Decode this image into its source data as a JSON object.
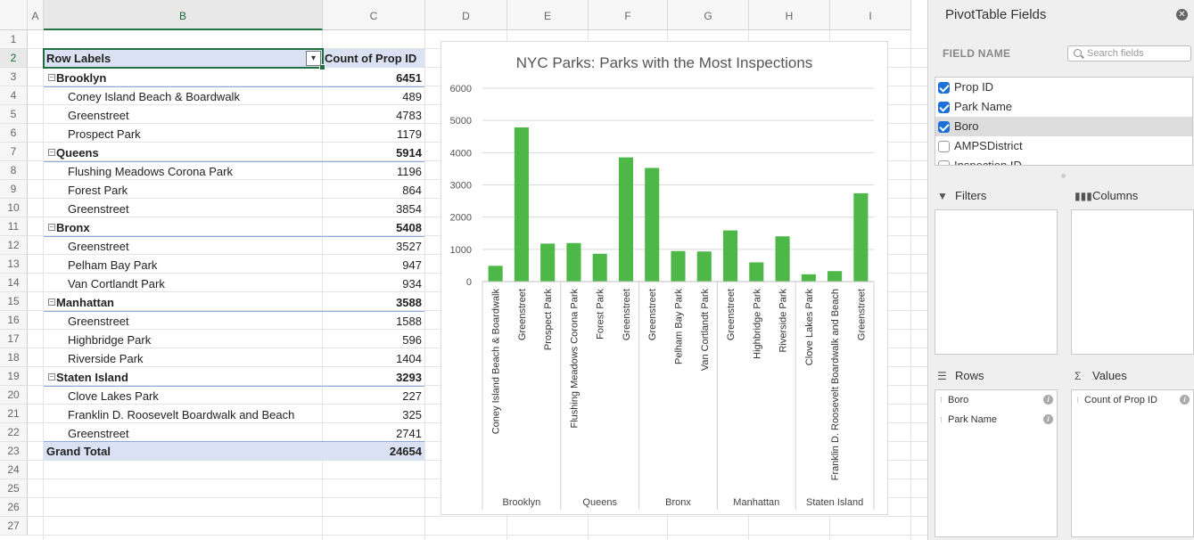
{
  "sheet": {
    "columns": [
      "A",
      "B",
      "C",
      "D",
      "E",
      "F",
      "G",
      "H",
      "I"
    ],
    "rows": [
      "1",
      "2",
      "3",
      "4",
      "5",
      "6",
      "7",
      "8",
      "9",
      "10",
      "11",
      "12",
      "13",
      "14",
      "15",
      "16",
      "17",
      "18",
      "19",
      "20",
      "21",
      "22",
      "23",
      "24",
      "25",
      "26",
      "27"
    ],
    "selected_column": "B",
    "selected_row": "2"
  },
  "pivot": {
    "header_label": "Row Labels",
    "header_value": "Count of Prop ID",
    "filter_icon": "filter-dropdown-icon",
    "toggle_icon": "collapse-minus-icon",
    "groups": [
      {
        "name": "Brooklyn",
        "total": "6451",
        "items": [
          {
            "name": "Coney Island Beach & Boardwalk",
            "value": "489"
          },
          {
            "name": "Greenstreet",
            "value": "4783"
          },
          {
            "name": "Prospect Park",
            "value": "1179"
          }
        ]
      },
      {
        "name": "Queens",
        "total": "5914",
        "items": [
          {
            "name": "Flushing Meadows Corona Park",
            "value": "1196"
          },
          {
            "name": "Forest Park",
            "value": "864"
          },
          {
            "name": "Greenstreet",
            "value": "3854"
          }
        ]
      },
      {
        "name": "Bronx",
        "total": "5408",
        "items": [
          {
            "name": "Greenstreet",
            "value": "3527"
          },
          {
            "name": "Pelham Bay Park",
            "value": "947"
          },
          {
            "name": "Van Cortlandt Park",
            "value": "934"
          }
        ]
      },
      {
        "name": "Manhattan",
        "total": "3588",
        "items": [
          {
            "name": "Greenstreet",
            "value": "1588"
          },
          {
            "name": "Highbridge Park",
            "value": "596"
          },
          {
            "name": "Riverside Park",
            "value": "1404"
          }
        ]
      },
      {
        "name": "Staten Island",
        "total": "3293",
        "items": [
          {
            "name": "Clove Lakes Park",
            "value": "227"
          },
          {
            "name": "Franklin D. Roosevelt Boardwalk and Beach",
            "value": "325"
          },
          {
            "name": "Greenstreet",
            "value": "2741"
          }
        ]
      }
    ],
    "grand_total_label": "Grand Total",
    "grand_total_value": "24654"
  },
  "chart_data": {
    "type": "bar",
    "title": "NYC Parks: Parks with the Most Inspections",
    "xlabel": "",
    "ylabel": "",
    "ylim": [
      0,
      6000
    ],
    "yticks": [
      0,
      1000,
      2000,
      3000,
      4000,
      5000,
      6000
    ],
    "bar_color": "#4db748",
    "categories": [
      "Coney Island Beach & Boardwalk",
      "Greenstreet",
      "Prospect Park",
      "Flushing Meadows Corona Park",
      "Forest Park",
      "Greenstreet",
      "Greenstreet",
      "Pelham Bay Park",
      "Van Cortlandt Park",
      "Greenstreet",
      "Highbridge Park",
      "Riverside Park",
      "Clove Lakes Park",
      "Franklin D. Roosevelt Boardwalk and Beach",
      "Greenstreet"
    ],
    "groups": [
      "Brooklyn",
      "Queens",
      "Bronx",
      "Manhattan",
      "Staten Island"
    ],
    "group_sizes": [
      3,
      3,
      3,
      3,
      3
    ],
    "values": [
      489,
      4783,
      1179,
      1196,
      864,
      3854,
      3527,
      947,
      934,
      1588,
      596,
      1404,
      227,
      325,
      2741
    ],
    "grid": true
  },
  "pane": {
    "title": "PivotTable Fields",
    "close_icon": "close-icon",
    "field_name_label": "FIELD NAME",
    "search_placeholder": "Search fields",
    "fields": [
      {
        "name": "Prop ID",
        "checked": true
      },
      {
        "name": "Park Name",
        "checked": true
      },
      {
        "name": "Boro",
        "checked": true
      },
      {
        "name": "AMPSDistrict",
        "checked": false
      },
      {
        "name": "Inspection ID",
        "checked": false
      }
    ],
    "filters_label": "Filters",
    "columns_label": "Columns",
    "rows_label": "Rows",
    "values_label": "Values",
    "rows_items": [
      "Boro",
      "Park Name"
    ],
    "values_items": [
      "Count of Prop ID"
    ]
  }
}
